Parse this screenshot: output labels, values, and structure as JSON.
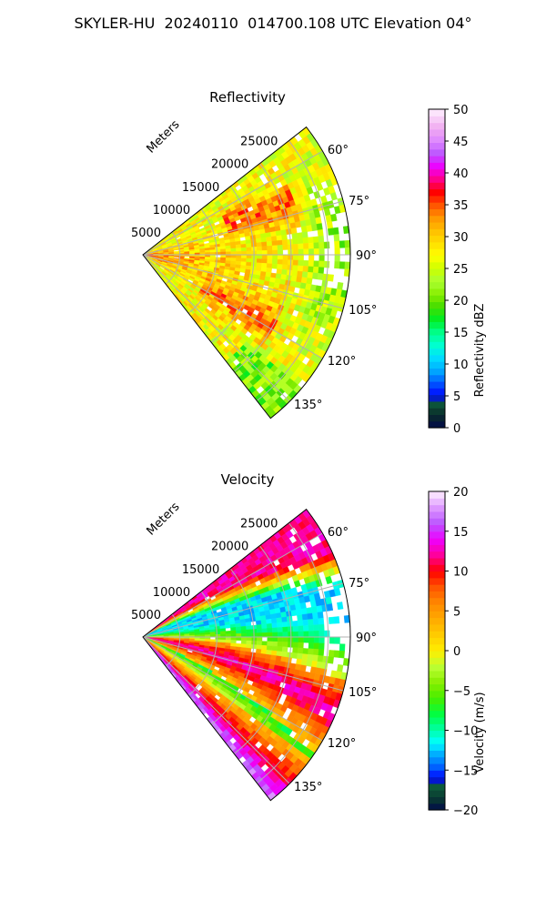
{
  "figure_title": "SKYLER-HU  20240110  014700.108 UTC Elevation 04°",
  "chart_data": [
    {
      "type": "heatmap",
      "subtype": "radar-ppi-sector",
      "title": "Reflectivity",
      "range_label": "Meters",
      "range_ticks": [
        5000,
        10000,
        15000,
        20000,
        25000
      ],
      "range_tick_labels": [
        "5000",
        "10000",
        "15000",
        "20000",
        "25000"
      ],
      "range_max": 28000,
      "azimuth_range": [
        52,
        142
      ],
      "azimuth_ticks": [
        60,
        75,
        90,
        105,
        120,
        135
      ],
      "azimuth_tick_labels": [
        "60°",
        "75°",
        "90°",
        "105°",
        "120°",
        "135°"
      ],
      "grid": true,
      "colorbar": {
        "label": "Reflectivity dBZ",
        "range": [
          0,
          50
        ],
        "ticks": [
          0,
          5,
          10,
          15,
          20,
          25,
          30,
          35,
          40,
          45,
          50
        ],
        "tick_labels": [
          "0",
          "5",
          "10",
          "15",
          "20",
          "25",
          "30",
          "35",
          "40",
          "45",
          "50"
        ],
        "stops": [
          [
            0,
            "#000a4a"
          ],
          [
            2,
            "#0a2a2a"
          ],
          [
            4,
            "#0d5c3c"
          ],
          [
            5,
            "#0000ff"
          ],
          [
            7,
            "#0055ff"
          ],
          [
            9,
            "#00aaff"
          ],
          [
            11,
            "#00ddff"
          ],
          [
            13,
            "#00ffd0"
          ],
          [
            15,
            "#00ff8a"
          ],
          [
            17,
            "#00ee22"
          ],
          [
            19,
            "#44dd00"
          ],
          [
            21,
            "#88ee00"
          ],
          [
            23,
            "#aaff33"
          ],
          [
            25,
            "#ccff00"
          ],
          [
            27,
            "#ffff00"
          ],
          [
            29,
            "#ffe000"
          ],
          [
            31,
            "#ffbe00"
          ],
          [
            33,
            "#ff9600"
          ],
          [
            35,
            "#ff5500"
          ],
          [
            37,
            "#ff0000"
          ],
          [
            39,
            "#ff0088"
          ],
          [
            41,
            "#ee00ff"
          ],
          [
            43,
            "#bb55ff"
          ],
          [
            45,
            "#dd88ff"
          ],
          [
            47,
            "#f0aaf0"
          ],
          [
            50,
            "#fff0ff"
          ]
        ]
      },
      "field_model": {
        "base": 27,
        "near_core": {
          "peak": 36,
          "center_az": 95,
          "width_deg": 14,
          "range_scale": 8000
        },
        "lobe_upper": {
          "value": 34,
          "center_az": 70,
          "width_deg": 5,
          "range_from": 12000,
          "range_to": 22000
        },
        "lobe_lower": {
          "value": 33,
          "center_az": 118,
          "width_deg": 6,
          "range_from": 9000,
          "range_to": 20000
        },
        "far_right": {
          "value": 22,
          "center_az": 92,
          "width_deg": 18,
          "range_from": 21000
        },
        "noise": 4,
        "gap_prob": 0.07,
        "gap_center_az": 85,
        "gap_range_from": 24000
      }
    },
    {
      "type": "heatmap",
      "subtype": "radar-ppi-sector",
      "title": "Velocity",
      "range_label": "Meters",
      "range_ticks": [
        5000,
        10000,
        15000,
        20000,
        25000
      ],
      "range_tick_labels": [
        "5000",
        "10000",
        "15000",
        "20000",
        "25000"
      ],
      "range_max": 28000,
      "azimuth_range": [
        52,
        142
      ],
      "azimuth_ticks": [
        60,
        75,
        90,
        105,
        120,
        135
      ],
      "azimuth_tick_labels": [
        "60°",
        "75°",
        "90°",
        "105°",
        "120°",
        "135°"
      ],
      "grid": true,
      "colorbar": {
        "label": "Velocity (m/s)",
        "range": [
          -20,
          20
        ],
        "ticks": [
          -20,
          -15,
          -10,
          -5,
          0,
          5,
          10,
          15,
          20
        ],
        "tick_labels": [
          "−20",
          "−15",
          "−10",
          "−5",
          "0",
          "5",
          "10",
          "15",
          "20"
        ],
        "stops": [
          [
            -20,
            "#000a4a"
          ],
          [
            -18.5,
            "#0a3a30"
          ],
          [
            -17,
            "#0d5c3c"
          ],
          [
            -16,
            "#0000ff"
          ],
          [
            -14.5,
            "#0066ff"
          ],
          [
            -13,
            "#00aaff"
          ],
          [
            -11.5,
            "#00ffff"
          ],
          [
            -10,
            "#00ffaa"
          ],
          [
            -8,
            "#00ff44"
          ],
          [
            -6,
            "#44ee00"
          ],
          [
            -4,
            "#88ee00"
          ],
          [
            -2,
            "#bbff33"
          ],
          [
            0,
            "#ffee00"
          ],
          [
            2,
            "#ffcc00"
          ],
          [
            4,
            "#ffaa00"
          ],
          [
            6,
            "#ff8800"
          ],
          [
            8,
            "#ff5500"
          ],
          [
            10,
            "#ff0000"
          ],
          [
            12,
            "#ff0099"
          ],
          [
            14,
            "#ee00ff"
          ],
          [
            16,
            "#bb55ff"
          ],
          [
            18,
            "#dd99ff"
          ],
          [
            20,
            "#fff0ff"
          ]
        ]
      },
      "field_model": {
        "neutral_az_near": 90,
        "neutral_az_far": 102,
        "upper_peak": -12,
        "lower_peak": 13,
        "band_width_deg": 14,
        "edge_upper_value": 12,
        "edge_lower_value": 2,
        "noise": 1.5,
        "gap_prob": 0.06,
        "gap_center_az": 85,
        "gap_range_from": 24000
      }
    }
  ]
}
